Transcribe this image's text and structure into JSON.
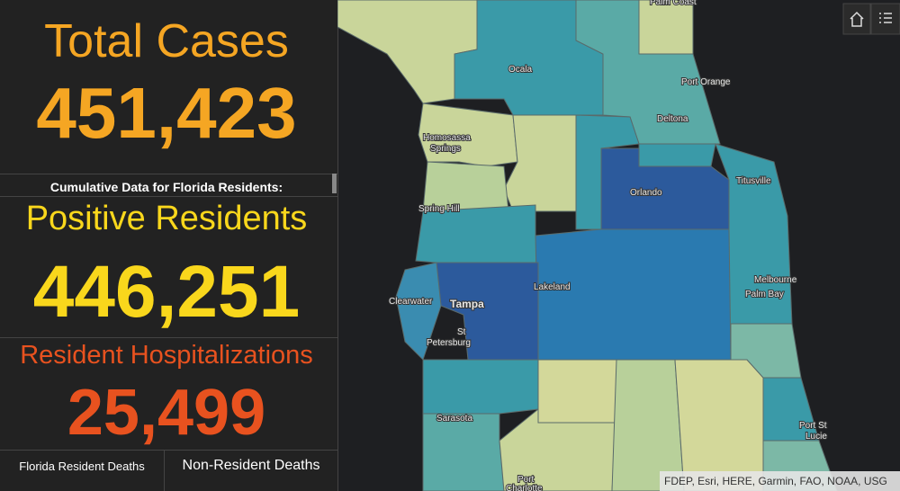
{
  "panel": {
    "total_cases": {
      "title": "Total Cases",
      "value": "451,423"
    },
    "subtitle": "Cumulative Data for Florida Residents:",
    "positive_residents": {
      "title": "Positive Residents",
      "value": "446,251"
    },
    "hospitalizations": {
      "title": "Resident Hospitalizations",
      "value": "25,499"
    },
    "deaths": {
      "resident": "Florida Resident Deaths",
      "non_resident": "Non-Resident Deaths"
    }
  },
  "map": {
    "labels": [
      "Palm Coast",
      "Ocala",
      "Port Orange",
      "Deltona",
      "Homosassa",
      "Springs",
      "Orlando",
      "Titusville",
      "Spring Hill",
      "Tampa",
      "Lakeland",
      "Clearwater",
      "St",
      "Petersburg",
      "Melbourne",
      "Palm Bay",
      "Sarasota",
      "Port St",
      "Lucie",
      "Port",
      "Charlotte"
    ],
    "attribution": "FDEP, Esri, HERE, Garmin, FAO, NOAA, USG"
  }
}
